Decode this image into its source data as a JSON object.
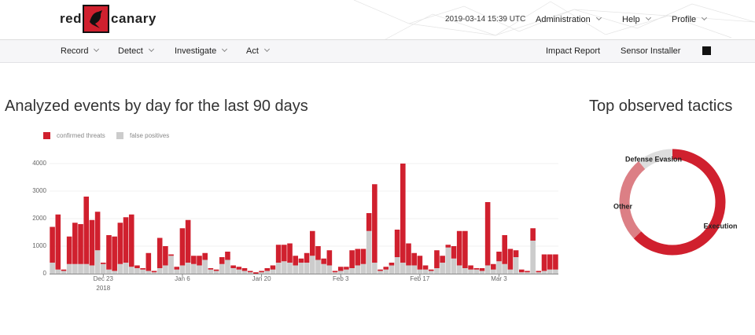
{
  "header": {
    "logo_left": "red",
    "logo_right": "canary",
    "timestamp": "2019-03-14 15:39 UTC",
    "menu": [
      "Administration",
      "Help",
      "Profile"
    ]
  },
  "nav": {
    "left": [
      "Record",
      "Detect",
      "Investigate",
      "Act"
    ],
    "right": [
      "Impact Report",
      "Sensor Installer"
    ]
  },
  "chart_data": [
    {
      "type": "bar",
      "stacked": true,
      "title": "Analyzed events by day for the last 90 days",
      "categories": [
        null,
        null,
        null,
        null,
        null,
        null,
        null,
        null,
        null,
        "Dec 23",
        null,
        null,
        null,
        null,
        null,
        null,
        null,
        null,
        null,
        null,
        null,
        null,
        null,
        "Jan 6",
        null,
        null,
        null,
        null,
        null,
        null,
        null,
        null,
        null,
        null,
        null,
        null,
        null,
        "Jan 20",
        null,
        null,
        null,
        null,
        null,
        null,
        null,
        null,
        null,
        null,
        null,
        null,
        null,
        "Feb 3",
        null,
        null,
        null,
        null,
        null,
        null,
        null,
        null,
        null,
        null,
        null,
        null,
        null,
        "Feb 17",
        null,
        null,
        null,
        null,
        null,
        null,
        null,
        null,
        null,
        null,
        null,
        null,
        null,
        "Mar 3",
        null,
        null,
        null,
        null,
        null,
        null,
        null,
        null,
        null,
        null
      ],
      "x_sublabel": "2018",
      "series": [
        {
          "name": "confirmed threats",
          "color": "#d0202e",
          "values": [
            1300,
            2000,
            50,
            1000,
            1500,
            1450,
            2450,
            1650,
            1400,
            50,
            1250,
            1250,
            1500,
            1650,
            1900,
            100,
            50,
            650,
            50,
            1100,
            700,
            50,
            100,
            1350,
            1550,
            300,
            350,
            250,
            50,
            50,
            250,
            300,
            100,
            100,
            100,
            50,
            50,
            50,
            100,
            150,
            650,
            600,
            700,
            350,
            150,
            350,
            900,
            500,
            200,
            550,
            50,
            150,
            100,
            650,
            600,
            550,
            650,
            2850,
            50,
            100,
            100,
            1000,
            3600,
            800,
            450,
            500,
            150,
            50,
            650,
            250,
            100,
            450,
            1250,
            1350,
            150,
            50,
            100,
            2300,
            200,
            350,
            1050,
            750,
            250,
            100,
            50,
            450,
            50,
            600,
            550,
            550
          ]
        },
        {
          "name": "false positives",
          "color": "#cccccc",
          "values": [
            400,
            150,
            100,
            350,
            350,
            350,
            350,
            300,
            850,
            350,
            150,
            100,
            350,
            400,
            250,
            200,
            150,
            100,
            50,
            200,
            300,
            650,
            150,
            300,
            400,
            350,
            300,
            500,
            150,
            100,
            350,
            500,
            200,
            150,
            100,
            50,
            0,
            50,
            100,
            150,
            400,
            450,
            400,
            300,
            400,
            400,
            650,
            500,
            350,
            300,
            50,
            100,
            150,
            200,
            300,
            350,
            1550,
            400,
            100,
            150,
            300,
            600,
            400,
            300,
            300,
            150,
            150,
            100,
            200,
            400,
            950,
            550,
            300,
            200,
            150,
            150,
            100,
            300,
            150,
            450,
            350,
            150,
            600,
            50,
            50,
            1200,
            50,
            100,
            150,
            150
          ]
        }
      ],
      "ylim": [
        0,
        4200
      ],
      "yticks": [
        0,
        1000,
        2000,
        3000,
        4000
      ],
      "grid": true
    },
    {
      "type": "pie",
      "donut": true,
      "title": "Top observed tactics",
      "categories": [
        "Execution",
        "Other",
        "Defense Evasion"
      ],
      "values": [
        63,
        26,
        11
      ],
      "colors": [
        "#d0202e",
        "#dc7f85",
        "#dddddd"
      ]
    }
  ]
}
